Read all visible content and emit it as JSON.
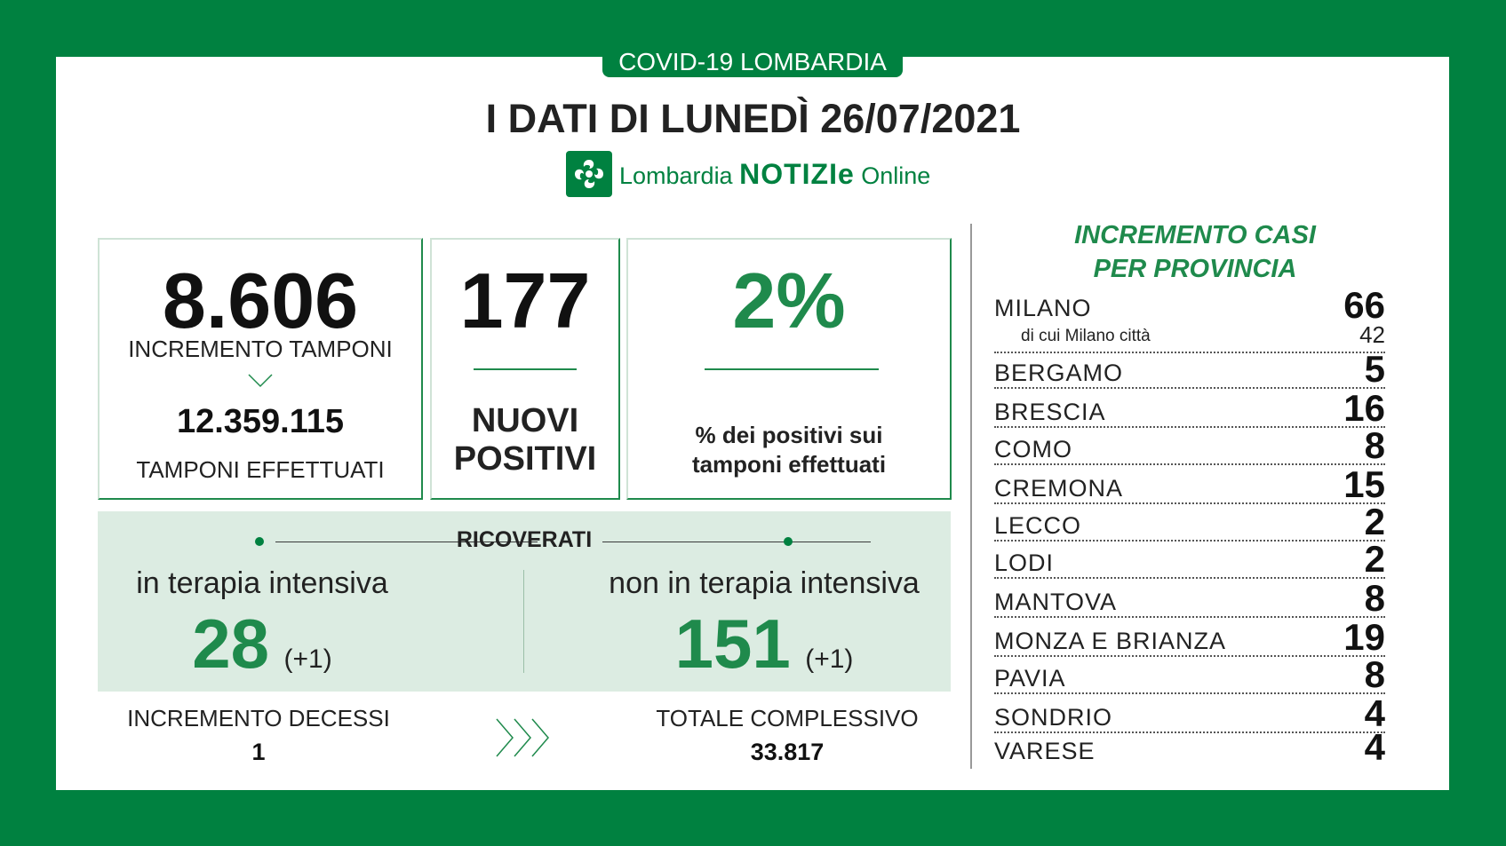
{
  "header": {
    "tagline": "COVID-19 LOMBARDIA",
    "title": "I DATI DI LUNEDÌ 26/07/2021",
    "logo_prefix": "Lombardia",
    "logo_main": "NOTIZIe",
    "logo_suffix": "Online",
    "logo_icon": "lombardia-rose-icon"
  },
  "tamponi": {
    "value": "8.606",
    "label": "INCREMENTO TAMPONI",
    "total": "12.359.115",
    "total_label": "TAMPONI EFFETTUATI"
  },
  "positivi": {
    "value": "177",
    "label_1": "NUOVI",
    "label_2": "POSITIVI"
  },
  "percent": {
    "value": "2%",
    "label_1": "% dei positivi sui",
    "label_2": "tamponi effettuati"
  },
  "ricoverati": {
    "title": "RICOVERATI",
    "ti_label": "in terapia intensiva",
    "ti_value": "28",
    "ti_delta": "(+1)",
    "nti_label": "non in terapia intensiva",
    "nti_value": "151",
    "nti_delta": "(+1)"
  },
  "decessi": {
    "label": "INCREMENTO DECESSI",
    "value": "1"
  },
  "totale": {
    "label": "TOTALE COMPLESSIVO",
    "value": "33.817"
  },
  "province": {
    "title_1": "INCREMENTO CASI",
    "title_2": "PER PROVINCIA",
    "milano_sub_label": "di cui Milano città",
    "milano_sub_value": "42",
    "rows": [
      {
        "name": "MILANO",
        "value": "66"
      },
      {
        "name": "BERGAMO",
        "value": "5"
      },
      {
        "name": "BRESCIA",
        "value": "16"
      },
      {
        "name": "COMO",
        "value": "8"
      },
      {
        "name": "CREMONA",
        "value": "15"
      },
      {
        "name": "LECCO",
        "value": "2"
      },
      {
        "name": "LODI",
        "value": "2"
      },
      {
        "name": "MANTOVA",
        "value": "8"
      },
      {
        "name": "MONZA E BRIANZA",
        "value": "19"
      },
      {
        "name": "PAVIA",
        "value": "8"
      },
      {
        "name": "SONDRIO",
        "value": "4"
      },
      {
        "name": "VARESE",
        "value": "4"
      }
    ]
  },
  "colors": {
    "brand_green": "#008140",
    "text_dark": "#222222",
    "panel_bg": "#dcece2"
  }
}
